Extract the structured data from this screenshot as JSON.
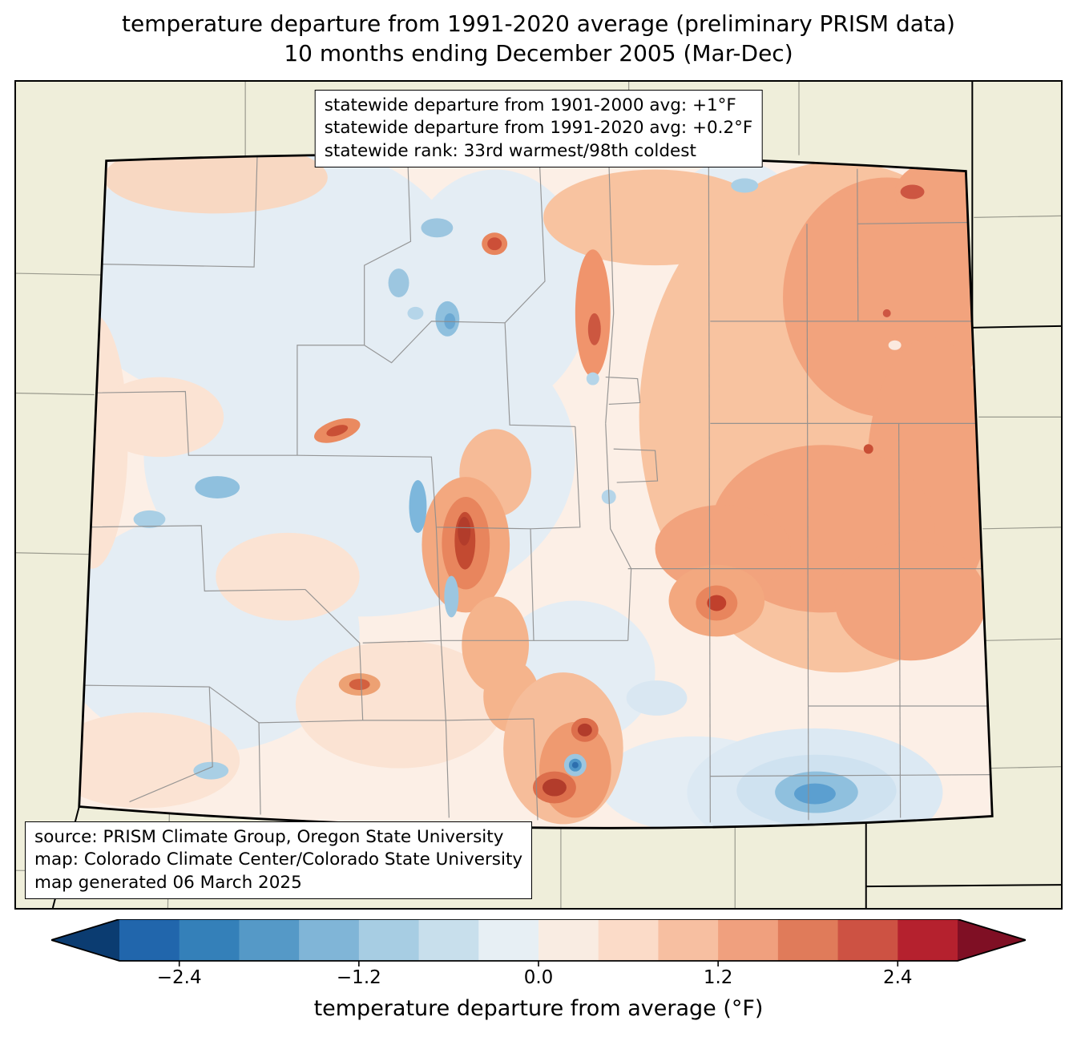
{
  "title": {
    "line1": "temperature departure from 1991-2020 average (preliminary PRISM data)",
    "line2": "10 months ending December 2005 (Mar-Dec)"
  },
  "stats_box": {
    "line1": "statewide departure from 1901-2000 avg: +1°F",
    "line2": "statewide departure from 1991-2020 avg: +0.2°F",
    "line3": "statewide rank: 33rd warmest/98th coldest"
  },
  "source_box": {
    "line1": "source: PRISM Climate Group, Oregon State University",
    "line2": "map: Colorado Climate Center/Colorado State University",
    "line3": "map generated 06 March 2025"
  },
  "colorbar": {
    "label": "temperature departure from average (°F)",
    "ticks": [
      "−2.4",
      "−1.2",
      "0.0",
      "1.2",
      "2.4"
    ],
    "range": [
      -2.8,
      2.8
    ],
    "segment_colors": [
      "#2166ac",
      "#3480b9",
      "#5599c7",
      "#80b5d7",
      "#a7cde3",
      "#c8dfec",
      "#e7eff4",
      "#f9ece2",
      "#fbdbc8",
      "#f7bfa1",
      "#f0a07e",
      "#e07b5a",
      "#cd5243",
      "#b5212e"
    ],
    "left_arrow_color": "#0b3c71",
    "right_arrow_color": "#7f0f24"
  },
  "map_colors": {
    "outside_background": "#efeeda",
    "state_base": "#fcefe6",
    "cool_pale": "#e4edf4",
    "warm_main": "#f2a37d",
    "hot_spot": "#b23c2b",
    "cold_spot": "#2d6fae",
    "county_line": "#8d8d8d",
    "state_border": "#000000"
  }
}
